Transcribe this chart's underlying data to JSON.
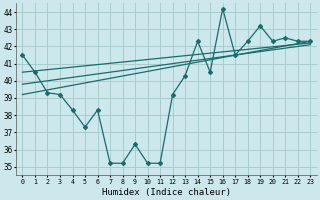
{
  "xlabel": "Humidex (Indice chaleur)",
  "ylabel": "",
  "bg_color": "#cce8ec",
  "grid_color": "#aacccc",
  "line_color": "#1a6b6b",
  "xlim": [
    -0.5,
    23.5
  ],
  "ylim": [
    34.5,
    44.5
  ],
  "xticks": [
    0,
    1,
    2,
    3,
    4,
    5,
    6,
    7,
    8,
    9,
    10,
    11,
    12,
    13,
    14,
    15,
    16,
    17,
    18,
    19,
    20,
    21,
    22,
    23
  ],
  "yticks": [
    35,
    36,
    37,
    38,
    39,
    40,
    41,
    42,
    43,
    44
  ],
  "main_x": [
    0,
    1,
    2,
    3,
    4,
    5,
    6,
    7,
    8,
    9,
    10,
    11,
    12,
    13,
    14,
    15,
    16,
    17,
    18,
    19,
    20,
    21,
    22,
    23
  ],
  "main_y": [
    41.5,
    40.5,
    39.3,
    39.2,
    38.3,
    37.3,
    38.3,
    35.2,
    35.2,
    36.3,
    35.2,
    35.2,
    39.2,
    40.3,
    42.3,
    40.5,
    44.2,
    41.5,
    42.3,
    43.2,
    42.3,
    42.5,
    42.3,
    42.3
  ],
  "trend1_x": [
    0,
    23
  ],
  "trend1_y": [
    39.2,
    42.3
  ],
  "trend2_x": [
    0,
    23
  ],
  "trend2_y": [
    39.8,
    42.1
  ],
  "trend3_x": [
    0,
    23
  ],
  "trend3_y": [
    40.5,
    42.2
  ]
}
